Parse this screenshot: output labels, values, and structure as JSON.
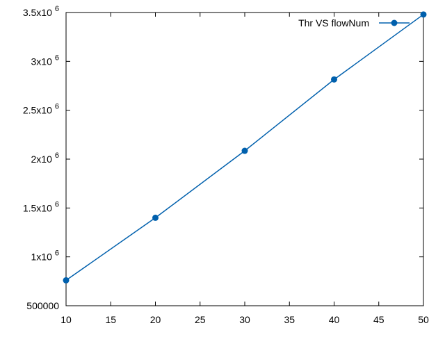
{
  "chart_data": {
    "type": "line",
    "title": "",
    "xlabel": "",
    "ylabel": "",
    "x": [
      10,
      20,
      30,
      40,
      50
    ],
    "series": [
      {
        "name": "Thr VS flowNum",
        "values": [
          760000,
          1400000,
          2085000,
          2815000,
          3480000
        ],
        "color": "#0060ad"
      }
    ],
    "xlim": [
      10,
      50
    ],
    "ylim": [
      500000,
      3500000
    ],
    "xticks": [
      10,
      15,
      20,
      25,
      30,
      35,
      40,
      45,
      50
    ],
    "xtick_labels": [
      "10",
      "15",
      "20",
      "25",
      "30",
      "35",
      "40",
      "45",
      "50"
    ],
    "yticks": [
      500000,
      1000000,
      1500000,
      2000000,
      2500000,
      3000000,
      3500000
    ],
    "ytick_labels": [
      {
        "mantissa": "500000",
        "exponent": ""
      },
      {
        "mantissa": "1x10",
        "exponent": "6"
      },
      {
        "mantissa": "1.5x10",
        "exponent": "6"
      },
      {
        "mantissa": "2x10",
        "exponent": "6"
      },
      {
        "mantissa": "2.5x10",
        "exponent": "6"
      },
      {
        "mantissa": "3x10",
        "exponent": "6"
      },
      {
        "mantissa": "3.5x10",
        "exponent": "6"
      }
    ],
    "grid": false,
    "legend_position": "top-right",
    "marker": "circle"
  }
}
